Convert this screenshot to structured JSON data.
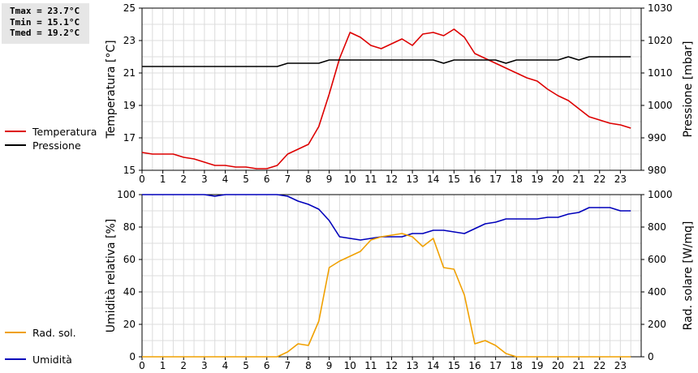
{
  "stats": {
    "tmax": "Tmax = 23.7°C",
    "tmin": "Tmin = 15.1°C",
    "tmed": "Tmed = 19.2°C"
  },
  "legends": {
    "temperature": {
      "label": "Temperatura",
      "color": "#dd0000"
    },
    "pressure": {
      "label": "Pressione",
      "color": "#000000"
    },
    "humidity": {
      "label": "Umidità",
      "color": "#0000bb"
    },
    "solar": {
      "label": "Rad. sol.",
      "color": "#f0a000"
    }
  },
  "chart_data": [
    {
      "type": "line",
      "title": "",
      "xlabel": "",
      "x_ticks": [
        "0",
        "1",
        "2",
        "3",
        "4",
        "5",
        "6",
        "7",
        "8",
        "9",
        "10",
        "11",
        "12",
        "13",
        "14",
        "15",
        "16",
        "17",
        "18",
        "19",
        "20",
        "21",
        "22",
        "23"
      ],
      "xlim": [
        0,
        24
      ],
      "left_axis": {
        "label": "Temperatura [°C]",
        "ylim": [
          15,
          25
        ],
        "ticks": [
          "15",
          "17",
          "19",
          "21",
          "23",
          "25"
        ]
      },
      "right_axis": {
        "label": "Pressione [mbar]",
        "ylim": [
          980,
          1030
        ],
        "ticks": [
          "980",
          "990",
          "1000",
          "1010",
          "1020",
          "1030"
        ]
      },
      "grid": true,
      "series": [
        {
          "name": "Temperatura",
          "axis": "left",
          "x": [
            0,
            0.5,
            1,
            1.5,
            2,
            2.5,
            3,
            3.5,
            4,
            4.5,
            5,
            5.5,
            6,
            6.5,
            7,
            7.5,
            8,
            8.5,
            9,
            9.5,
            10,
            10.5,
            11,
            11.5,
            12,
            12.5,
            13,
            13.5,
            14,
            14.5,
            15,
            15.5,
            16,
            16.5,
            17,
            17.5,
            18,
            18.5,
            19,
            19.5,
            20,
            20.5,
            21,
            21.5,
            22,
            22.5,
            23,
            23.5
          ],
          "y": [
            16.1,
            16.0,
            16.0,
            16.0,
            15.8,
            15.7,
            15.5,
            15.3,
            15.3,
            15.2,
            15.2,
            15.1,
            15.1,
            15.3,
            16.0,
            16.3,
            16.6,
            17.7,
            19.7,
            21.9,
            23.5,
            23.2,
            22.7,
            22.5,
            22.8,
            23.1,
            22.7,
            23.4,
            23.5,
            23.3,
            23.7,
            23.2,
            22.2,
            21.9,
            21.6,
            21.3,
            21.0,
            20.7,
            20.5,
            20.0,
            19.6,
            19.3,
            18.8,
            18.3,
            18.1,
            17.9,
            17.8,
            17.6
          ]
        },
        {
          "name": "Pressione",
          "axis": "right",
          "x": [
            0,
            0.5,
            1,
            1.5,
            2,
            2.5,
            3,
            3.5,
            4,
            4.5,
            5,
            5.5,
            6,
            6.5,
            7,
            7.5,
            8,
            8.5,
            9,
            9.5,
            10,
            10.5,
            11,
            11.5,
            12,
            12.5,
            13,
            13.5,
            14,
            14.5,
            15,
            15.5,
            16,
            16.5,
            17,
            17.5,
            18,
            18.5,
            19,
            19.5,
            20,
            20.5,
            21,
            21.5,
            22,
            22.5,
            23,
            23.5
          ],
          "y": [
            1012,
            1012,
            1012,
            1012,
            1012,
            1012,
            1012,
            1012,
            1012,
            1012,
            1012,
            1012,
            1012,
            1012,
            1013,
            1013,
            1013,
            1013,
            1014,
            1014,
            1014,
            1014,
            1014,
            1014,
            1014,
            1014,
            1014,
            1014,
            1014,
            1013,
            1014,
            1014,
            1014,
            1014,
            1014,
            1013,
            1014,
            1014,
            1014,
            1014,
            1014,
            1015,
            1014,
            1015,
            1015,
            1015,
            1015,
            1015
          ]
        }
      ]
    },
    {
      "type": "line",
      "title": "",
      "xlabel": "",
      "x_ticks": [
        "0",
        "1",
        "2",
        "3",
        "4",
        "5",
        "6",
        "7",
        "8",
        "9",
        "10",
        "11",
        "12",
        "13",
        "14",
        "15",
        "16",
        "17",
        "18",
        "19",
        "20",
        "21",
        "22",
        "23"
      ],
      "xlim": [
        0,
        24
      ],
      "left_axis": {
        "label": "Umidità relativa [%]",
        "ylim": [
          0,
          100
        ],
        "ticks": [
          "0",
          "20",
          "40",
          "60",
          "80",
          "100"
        ]
      },
      "right_axis": {
        "label": "Rad. solare [W/mq]",
        "ylim": [
          0,
          1000
        ],
        "ticks": [
          "0",
          "200",
          "400",
          "600",
          "800",
          "1000"
        ]
      },
      "grid": true,
      "series": [
        {
          "name": "Umidità",
          "axis": "left",
          "x": [
            0,
            0.5,
            1,
            1.5,
            2,
            2.5,
            3,
            3.5,
            4,
            4.5,
            5,
            5.5,
            6,
            6.5,
            7,
            7.5,
            8,
            8.5,
            9,
            9.5,
            10,
            10.5,
            11,
            11.5,
            12,
            12.5,
            13,
            13.5,
            14,
            14.5,
            15,
            15.5,
            16,
            16.5,
            17,
            17.5,
            18,
            18.5,
            19,
            19.5,
            20,
            20.5,
            21,
            21.5,
            22,
            22.5,
            23,
            23.5
          ],
          "y": [
            100,
            100,
            100,
            100,
            100,
            100,
            100,
            99,
            100,
            100,
            100,
            100,
            100,
            100,
            99,
            96,
            94,
            91,
            84,
            74,
            73,
            72,
            73,
            74,
            74,
            74,
            76,
            76,
            78,
            78,
            77,
            76,
            79,
            82,
            83,
            85,
            85,
            85,
            85,
            86,
            86,
            88,
            89,
            92,
            92,
            92,
            90,
            90
          ]
        },
        {
          "name": "Rad. sol.",
          "axis": "right",
          "x": [
            0,
            0.5,
            1,
            1.5,
            2,
            2.5,
            3,
            3.5,
            4,
            4.5,
            5,
            5.5,
            6,
            6.5,
            7,
            7.5,
            8,
            8.5,
            9,
            9.5,
            10,
            10.5,
            11,
            11.5,
            12,
            12.5,
            13,
            13.5,
            14,
            14.5,
            15,
            15.5,
            16,
            16.5,
            17,
            17.5,
            18,
            18.5,
            19,
            19.5,
            20,
            20.5,
            21,
            21.5,
            22,
            22.5,
            23,
            23.5
          ],
          "y": [
            0,
            0,
            0,
            0,
            0,
            0,
            0,
            0,
            0,
            0,
            0,
            0,
            0,
            0,
            30,
            80,
            70,
            220,
            550,
            590,
            620,
            650,
            720,
            740,
            750,
            760,
            740,
            680,
            730,
            550,
            540,
            380,
            80,
            100,
            70,
            20,
            0,
            0,
            0,
            0,
            0,
            0,
            0,
            0,
            0,
            0,
            0,
            0
          ]
        }
      ]
    }
  ]
}
